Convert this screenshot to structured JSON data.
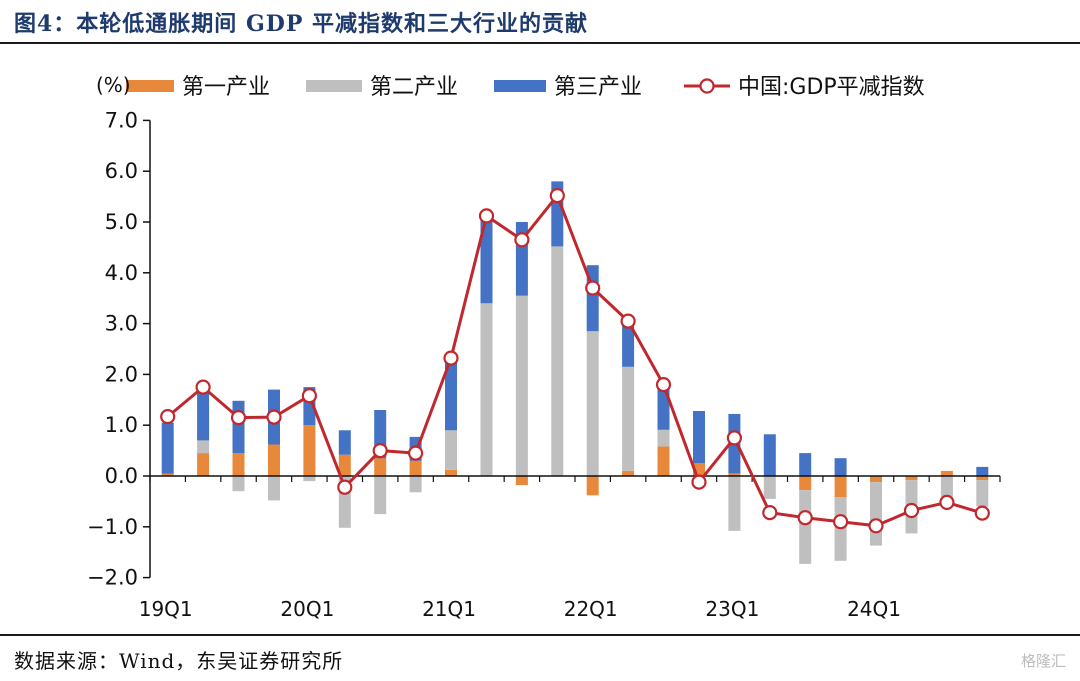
{
  "header": {
    "title": "图4：本轮低通胀期间 GDP 平减指数和三大行业的贡献"
  },
  "footer": {
    "source": "数据来源：Wind，东吴证券研究所",
    "watermark": "格隆汇"
  },
  "chart_data": {
    "type": "bar",
    "title": "",
    "unit_label": "(%)",
    "ylim": [
      -2.0,
      7.0
    ],
    "yticks": [
      "7.0",
      "6.0",
      "5.0",
      "4.0",
      "3.0",
      "2.0",
      "1.0",
      "0.0",
      "-1.0",
      "-2.0"
    ],
    "legend_position": "top",
    "x": [
      "19Q1",
      "19Q2",
      "19Q3",
      "19Q4",
      "20Q1",
      "20Q2",
      "20Q3",
      "20Q4",
      "21Q1",
      "21Q2",
      "21Q3",
      "21Q4",
      "22Q1",
      "22Q2",
      "22Q3",
      "22Q4",
      "23Q1",
      "23Q2",
      "23Q3",
      "23Q4",
      "24Q1",
      "24Q2",
      "24Q3",
      "24Q4"
    ],
    "x_tick_labels": [
      {
        "label": "19Q1",
        "at": "19Q1"
      },
      {
        "label": "20Q1",
        "at": "20Q1"
      },
      {
        "label": "21Q1",
        "at": "21Q1"
      },
      {
        "label": "22Q1",
        "at": "22Q1"
      },
      {
        "label": "23Q1",
        "at": "23Q1"
      },
      {
        "label": "24Q1",
        "at": "24Q1"
      }
    ],
    "series": [
      {
        "name": "第一产业",
        "kind": "bar",
        "color": "#e8883a",
        "values": [
          0.05,
          0.45,
          0.45,
          0.62,
          1.0,
          0.42,
          0.35,
          0.3,
          0.12,
          0.0,
          -0.18,
          0.0,
          -0.38,
          0.1,
          0.58,
          0.25,
          0.05,
          0.0,
          -0.28,
          -0.42,
          -0.12,
          -0.08,
          0.1,
          -0.08
        ]
      },
      {
        "name": "第二产业",
        "kind": "bar",
        "color": "#bfbfbf",
        "values": [
          0.0,
          0.25,
          -0.3,
          -0.48,
          -0.1,
          -1.02,
          -0.75,
          -0.32,
          0.78,
          3.4,
          3.55,
          4.52,
          2.85,
          2.05,
          0.33,
          -0.08,
          -1.08,
          -0.45,
          -1.45,
          -1.25,
          -1.25,
          -1.05,
          -0.5,
          -0.52
        ]
      },
      {
        "name": "第三产业",
        "kind": "bar",
        "color": "#4472c4",
        "values": [
          1.0,
          1.05,
          1.03,
          1.08,
          0.75,
          0.48,
          0.95,
          0.47,
          1.35,
          1.72,
          1.45,
          1.28,
          1.3,
          0.85,
          0.82,
          1.03,
          1.17,
          0.82,
          0.45,
          0.35,
          0.0,
          0.0,
          0.0,
          0.18
        ]
      },
      {
        "name": "中国:GDP平减指数",
        "kind": "line",
        "color": "#c0282e",
        "values": [
          1.17,
          1.75,
          1.15,
          1.16,
          1.58,
          -0.22,
          0.5,
          0.45,
          2.32,
          5.12,
          4.65,
          5.52,
          3.7,
          3.05,
          1.8,
          -0.12,
          0.75,
          -0.72,
          -0.82,
          -0.9,
          -0.98,
          -0.68,
          -0.52,
          -0.73
        ]
      }
    ]
  }
}
